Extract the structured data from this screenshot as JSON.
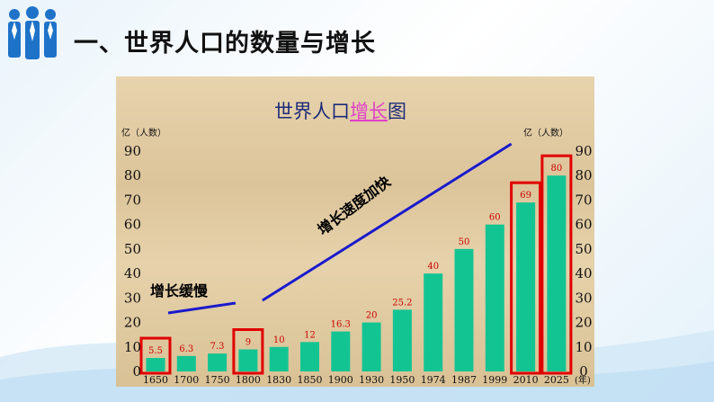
{
  "slide": {
    "title": "一、世界人口的数量与增长"
  },
  "colors": {
    "bar": "#13c493",
    "trend": "#1a1acc",
    "highlight_box": "#e00000",
    "value_label": "#cc0000"
  },
  "chart_data": {
    "type": "bar",
    "title_plain": "世界人口",
    "title_highlight": "增长",
    "title_suffix": "图",
    "ylabel_left": "亿（人数）",
    "ylabel_right": "亿（人数）",
    "xunit": "(年)",
    "ylim": [
      0,
      90
    ],
    "yticks": [
      0,
      10,
      20,
      30,
      40,
      50,
      60,
      70,
      80,
      90
    ],
    "categories": [
      "1650",
      "1700",
      "1750",
      "1800",
      "1830",
      "1850",
      "1900",
      "1930",
      "1950",
      "1974",
      "1987",
      "1999",
      "2010",
      "2025"
    ],
    "values": [
      5.5,
      6.3,
      7.3,
      9,
      10,
      12,
      16.3,
      20,
      25.2,
      40,
      50,
      60,
      69,
      80
    ],
    "labels": [
      "5.5",
      "6.3",
      "7.3",
      "9",
      "10",
      "12",
      "16.3",
      "20",
      "25.2",
      "40",
      "50",
      "60",
      "69",
      "80"
    ],
    "highlighted_categories": [
      "1650",
      "1800",
      "2010",
      "2025"
    ],
    "annotations": {
      "slow": "增长缓慢",
      "fast": "增长速度加快"
    }
  }
}
